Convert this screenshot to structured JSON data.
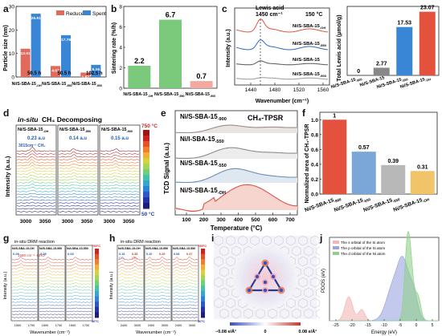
{
  "panels": {
    "a": {
      "label": "a",
      "chart_data": {
        "type": "bar",
        "ylabel": "Particle size (nm)",
        "ylim": [
          0,
          30
        ],
        "yticks": [
          0,
          10,
          20,
          30
        ],
        "categories": [
          "Ni/S-SBA-15-OH",
          "Ni/S-SBA-15-550",
          "Ni/S-SBA-15-900"
        ],
        "category_labels": [
          {
            "main": "Ni/S-SBA-15",
            "sub": "-OH"
          },
          {
            "main": "Ni/S-SBA-15",
            "sub": "550"
          },
          {
            "main": "Ni/S-SBA-15",
            "sub": "900"
          }
        ],
        "series": [
          {
            "name": "Reduced",
            "values": [
              12.01,
              4.67,
              1.87
            ],
            "color": "#e06a5c"
          },
          {
            "name": "Spent",
            "values": [
              26.91,
              17.78,
              5.16
            ],
            "color": "#3a86d6"
          }
        ],
        "value_labels": [
          [
            "12.01",
            "26.91"
          ],
          [
            "4.67",
            "17.78"
          ],
          [
            "1.87",
            "5.16"
          ]
        ],
        "time_labels": [
          "50.5 h",
          "50.5 h",
          "102.5 h"
        ],
        "legend_placement": "top-right"
      }
    },
    "b": {
      "label": "b",
      "chart_data": {
        "type": "bar",
        "ylabel": "Sintering rate (%/h)",
        "ylim": [
          0,
          8
        ],
        "yticks": [
          0,
          2,
          4,
          6,
          8
        ],
        "categories": [
          "Ni/S-SBA-15-OH",
          "Ni/S-SBA-15-550",
          "Ni/S-SBA-15-900"
        ],
        "category_labels": [
          {
            "main": "Ni/S-SBA-15",
            "sub": "-OH"
          },
          {
            "main": "Ni/S-SBA-15",
            "sub": "550"
          },
          {
            "main": "Ni/S-SBA-15",
            "sub": "900"
          }
        ],
        "values": [
          2.2,
          6.7,
          0.7
        ],
        "value_labels": [
          "2.2",
          "6.7",
          "0.7"
        ],
        "colors": [
          "#7bc97b",
          "#7bc97b",
          "#f2a9a0"
        ]
      }
    },
    "c": {
      "label": "c",
      "ir": {
        "ylabel": "Intensity (a.u.)",
        "xlabel": "Wavenumber (cm⁻¹)",
        "xticks": [
          "1440",
          "1480",
          "1520",
          "1560"
        ],
        "peak_label_line1": "Lewis acid",
        "peak_label_line2": "1450 cm⁻¹",
        "temperature": "150 °C",
        "traces": [
          {
            "name": "Ni/S-SBA-15-OH",
            "main": "Ni/S-SBA-15",
            "sub": "OH",
            "color": "#e4523d"
          },
          {
            "name": "Ni/S-SBA-15-550",
            "main": "Ni/S-SBA-15",
            "sub": "550",
            "color": "#2a66c9"
          },
          {
            "name": "Ni/S-SBA-15",
            "main": "Ni/S-SBA-15",
            "sub": "",
            "color": "#555555"
          },
          {
            "name": "Ni/S-SBA-15-900",
            "main": "Ni/S-SBA-15",
            "sub": "900",
            "color": "#999999"
          }
        ]
      },
      "chart_data": {
        "type": "bar",
        "ylabel": "Total Lewis acid (μmol/g)",
        "ylim": [
          0,
          25
        ],
        "categories": [
          "Ni/S-SBA-15-900",
          "Ni/S-SBA-15",
          "Ni/S-SBA-15-550",
          "Ni/S-SBA-15-OH"
        ],
        "category_labels": [
          {
            "main": "Ni/S-SBA-15",
            "sub": "900"
          },
          {
            "main": "Ni/S-SBA-15",
            "sub": ""
          },
          {
            "main": "Ni/S-SBA-15",
            "sub": "550"
          },
          {
            "main": "Ni/S-SBA-15",
            "sub": "OH"
          }
        ],
        "values": [
          0,
          2.77,
          17.53,
          23.07
        ],
        "value_labels": [
          "0",
          "2.77",
          "17.53",
          "23.07"
        ],
        "colors": [
          "#dddddd",
          "#888888",
          "#3a86d6",
          "#e4523d"
        ]
      }
    },
    "d": {
      "label": "d",
      "title_prefix": "in-situ",
      "title": "CH₄ Decomposing",
      "ylabel": "Intensity (a.u.)",
      "subpanels": [
        {
          "main": "Ni/S-SBA-15",
          "sub": "OH",
          "intensity": "0.23 a.u",
          "peak": "3015cm⁻¹ CH₄"
        },
        {
          "main": "Ni/S-SBA-15",
          "sub": "550",
          "intensity": "0.14 a.u"
        },
        {
          "main": "Ni/S-SBA-15",
          "sub": "900",
          "intensity": "0.15 a.u"
        }
      ],
      "xticks": [
        "3000",
        "3050"
      ],
      "colorbar_top": "750 °C",
      "colorbar_bottom": "50 °C"
    },
    "e": {
      "label": "e",
      "title": "CH₄-TPSR",
      "ylabel": "TCD Signal (a.u.)",
      "xlabel": "Temperature (°C)",
      "xticks": [
        "100",
        "200",
        "300",
        "400",
        "500",
        "600",
        "700"
      ],
      "traces": [
        {
          "main": "Ni/S-SBA-15",
          "sub": "900",
          "color": "#9b8f8a"
        },
        {
          "main": "Ni/l-SBA-15",
          "sub": "550",
          "color": "#8c8c8c"
        },
        {
          "main": "Ni/S-SBA-15",
          "sub": "550",
          "color": "#6a8fb8"
        },
        {
          "main": "Ni/S-SBA-15",
          "sub": "OH",
          "color": "#d9534a"
        }
      ]
    },
    "f": {
      "label": "f",
      "chart_data": {
        "type": "bar",
        "ylabel": "Normalized area of CH₄-TPSR",
        "ylim": [
          0,
          1.1
        ],
        "yticks": [
          0,
          0.2,
          0.4,
          0.6,
          0.8,
          1.0
        ],
        "ytick_labels": [
          "0.0",
          "0.2",
          "0.4",
          "0.6",
          "0.8",
          "1.0"
        ],
        "categories": [
          "Ni/S-SBA-15-900",
          "Ni/S-SBA-15-550",
          "Ni/S-SBA-15-550",
          "Ni/S-SBA-15-OH"
        ],
        "category_labels": [
          {
            "main": "Ni/S-SBA-15",
            "sub": "900"
          },
          {
            "main": "Ni/S-SBA-15",
            "sub": "550"
          },
          {
            "main": "Ni/S-SBA-15",
            "sub": "550"
          },
          {
            "main": "Ni/S-SBA-15",
            "sub": "OH"
          }
        ],
        "values": [
          1,
          0.57,
          0.39,
          0.31
        ],
        "value_labels": [
          "1",
          "0.57",
          "0.39",
          "0.31"
        ],
        "colors": [
          "#e4523d",
          "#7aa7d8",
          "#b8b8b8",
          "#f2c46a"
        ]
      }
    },
    "g": {
      "label": "g",
      "title": "in-situ DRM reaction",
      "ylabel": "Intensity (a.u.)",
      "xlabel": "Wavenumber (cm⁻¹)",
      "annotation": "1580 cm⁻¹ -CHO",
      "subpanels": [
        {
          "title": "Ni/S-SBA-15-OH",
          "value": "0.09"
        },
        {
          "title": "Ni/S-SBA-15-550",
          "value": "0.05"
        },
        {
          "title": "Ni/l-SBA-15-550",
          "value": "0.03"
        }
      ],
      "xticks": [
        "1500",
        "1700"
      ],
      "colorbar_top": "750°C",
      "colorbar_bottom": "50°C"
    },
    "h": {
      "label": "h",
      "title": "in-situ DRM reaction",
      "ylabel": "Intensity (a.u.)",
      "xlabel": "Wavenumber (cm⁻¹)",
      "subpanels": [
        {
          "title": "Ni/S-SBA-15-OH",
          "co2": "CO₂",
          "ch4": "CH₄",
          "v1": "0.15",
          "v2": "0.35"
        },
        {
          "title": "Ni/S-SBA-15-550",
          "v1": "0.10",
          "v2": "0.29"
        },
        {
          "title": "Ni/S-SBA-15-550",
          "v1": "0.08",
          "v2": "0.37"
        }
      ],
      "xticks": [
        "2400",
        "3000"
      ],
      "colorbar_top": "750°C",
      "colorbar_bottom": "50°C"
    },
    "i": {
      "label": "i",
      "scale_left": "−0.08 e/Å³",
      "scale_mid": "0",
      "scale_right": "0.08 e/Å³"
    },
    "j": {
      "label": "j",
      "ylabel": "PDOS (eV)",
      "xlabel": "Energy (eV)",
      "xticks": [
        "-25",
        "-20",
        "-15",
        "-10",
        "-5",
        "0",
        "5"
      ],
      "legend": [
        {
          "name": "The s orbital of the Si atom",
          "color": "#f2b6b6"
        },
        {
          "name": "The p orbital of the Si atom",
          "color": "#9aa5e0"
        },
        {
          "name": "The d orbital of the Ni atom",
          "color": "#8fd18a"
        }
      ]
    }
  },
  "colors": {
    "red": "#e4523d",
    "blue": "#3a86d6",
    "green": "#7bc97b"
  }
}
